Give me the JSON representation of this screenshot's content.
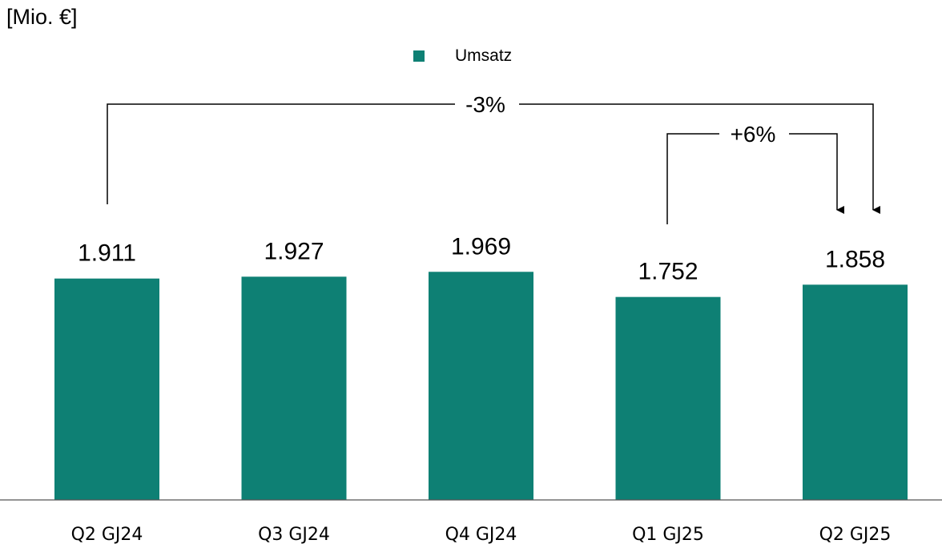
{
  "unit_label": "[Mio. €]",
  "chart_data": {
    "type": "bar",
    "categories": [
      "Q2 GJ24",
      "Q3 GJ24",
      "Q4 GJ24",
      "Q1 GJ25",
      "Q2 GJ25"
    ],
    "series": [
      {
        "name": "Umsatz",
        "values": [
          1911,
          1927,
          1969,
          1752,
          1858
        ],
        "color": "#0e8074"
      }
    ],
    "data_labels": [
      "1.911",
      "1.927",
      "1.969",
      "1.752",
      "1.858"
    ],
    "legend": {
      "placement": "top-center",
      "entries": [
        "Umsatz"
      ]
    },
    "annotations": [
      {
        "label": "-3%",
        "from_index": 0,
        "to_index": 4
      },
      {
        "label": "+6%",
        "from_index": 3,
        "to_index": 4
      }
    ],
    "ylim": [
      0,
      2500
    ],
    "grid": false,
    "y_axis_visible": false
  }
}
